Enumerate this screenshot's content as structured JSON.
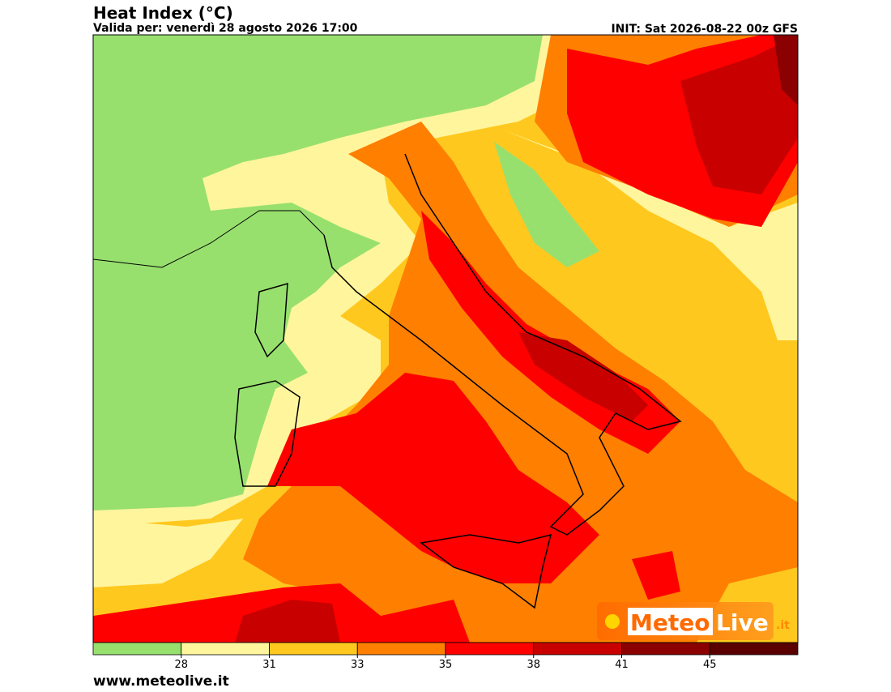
{
  "header": {
    "title": "Heat Index (°C)",
    "subtitle": "Valida per: venerdì 28 agosto 2026 17:00",
    "init": "INIT: Sat 2026-08-22 00z GFS"
  },
  "colorbar": {
    "colors": [
      "#98e06e",
      "#fff59d",
      "#ffc81e",
      "#ff7f00",
      "#ff0000",
      "#c80000",
      "#8b0000",
      "#5a0000"
    ],
    "ticks": [
      28,
      31,
      33,
      35,
      38,
      41,
      45
    ]
  },
  "logo": {
    "name": "Meteo",
    "brand": "Live",
    "domain": ".it"
  },
  "footer": {
    "url": "www.meteolive.it"
  }
}
